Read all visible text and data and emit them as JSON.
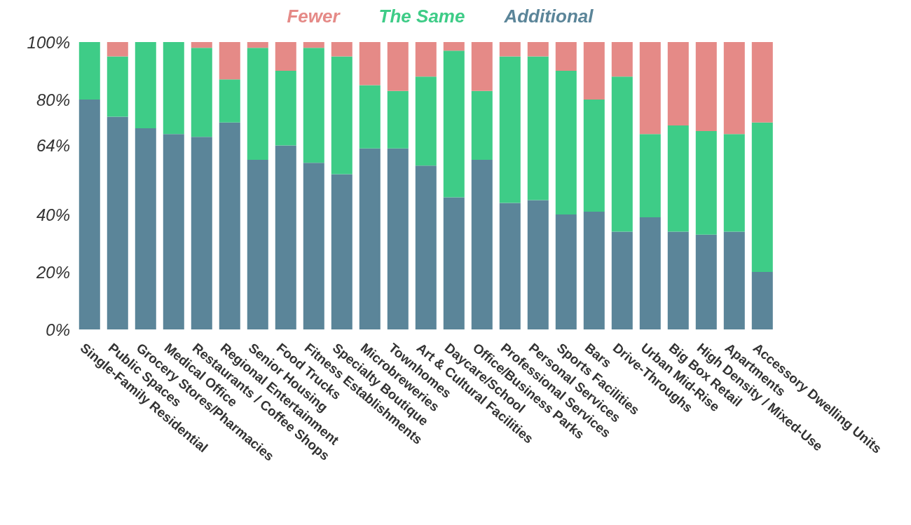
{
  "chart_data": {
    "type": "bar",
    "stacked": true,
    "categories": [
      "Single-Family Residential",
      "Public Spaces",
      "Grocery Stores/Pharmacies",
      "Medical Office",
      "Restaurants / Coffee Shops",
      "Regional Entertainment",
      "Senior Housing",
      "Food Trucks",
      "Fitness Establishments",
      "Specialty Boutique",
      "Microbreweries",
      "Townhomes",
      "Art & Cultural Facilities",
      "Daycare/School",
      "Office/Business Parks",
      "Professional Services",
      "Personal Services",
      "Sports Facilities",
      "Bars",
      "Drive-Throughs",
      "Urban Mid-Rise",
      "Big Box Retail",
      "High Density / Mixed-Use",
      "Apartments",
      "Accessory Dwelling Units"
    ],
    "series": [
      {
        "name": "Additional",
        "color": "#5b8599",
        "values": [
          80,
          74,
          70,
          68,
          67,
          72,
          59,
          64,
          58,
          54,
          63,
          63,
          57,
          46,
          59,
          44,
          45,
          40,
          41,
          34,
          39,
          34,
          33,
          34,
          20
        ]
      },
      {
        "name": "The Same",
        "color": "#3ecc87",
        "values": [
          20,
          21,
          30,
          32,
          31,
          15,
          39,
          26,
          40,
          41,
          22,
          20,
          31,
          51,
          24,
          51,
          50,
          50,
          39,
          54,
          29,
          37,
          36,
          34,
          52
        ]
      },
      {
        "name": "Fewer",
        "color": "#e58a87",
        "values": [
          0,
          5,
          0,
          0,
          2,
          13,
          2,
          10,
          2,
          5,
          15,
          17,
          12,
          3,
          17,
          5,
          5,
          10,
          20,
          12,
          32,
          29,
          31,
          32,
          28
        ]
      }
    ],
    "ylim": [
      0,
      100
    ],
    "yticks": [
      {
        "value": 0,
        "label": "0%"
      },
      {
        "value": 20,
        "label": "20%"
      },
      {
        "value": 40,
        "label": "40%"
      },
      {
        "value": 64,
        "label": "64%"
      },
      {
        "value": 80,
        "label": "80%"
      },
      {
        "value": 100,
        "label": "100%"
      }
    ],
    "grid": false,
    "legend": "top"
  }
}
